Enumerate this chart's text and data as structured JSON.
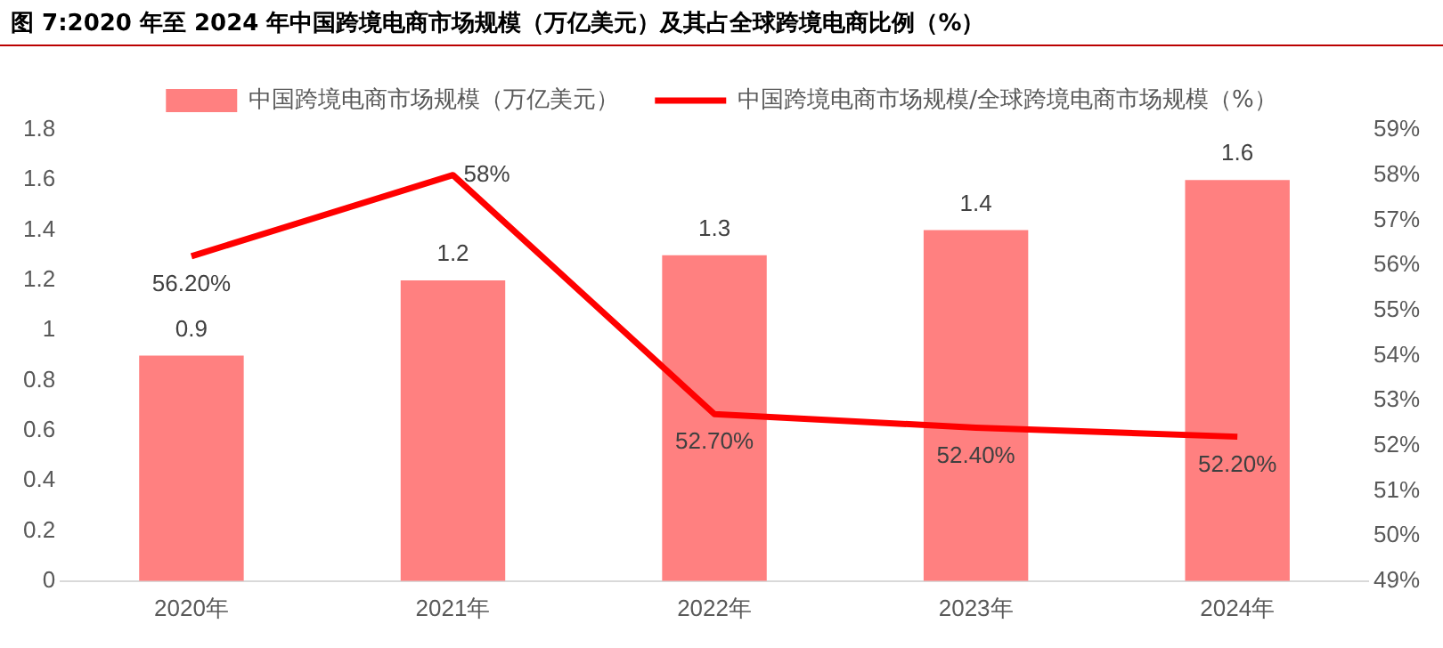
{
  "chart_data": {
    "type": "bar",
    "title": "图 7:2020 年至 2024 年中国跨境电商市场规模（万亿美元）及其占全球跨境电商比例（%）",
    "categories": [
      "2020年",
      "2021年",
      "2022年",
      "2023年",
      "2024年"
    ],
    "series": [
      {
        "name": "中国跨境电商市场规模（万亿美元）",
        "color": "#ff8080",
        "values": [
          0.9,
          1.2,
          1.3,
          1.4,
          1.6
        ],
        "value_labels": [
          "0.9",
          "1.2",
          "1.3",
          "1.4",
          "1.6"
        ]
      },
      {
        "name": "中国跨境电商市场规模/全球跨境电商市场规模（%）",
        "type": "line",
        "axis": "y2",
        "color": "#ff0000",
        "values": [
          56.2,
          58,
          52.7,
          52.4,
          52.2
        ],
        "value_labels": [
          "56.20%",
          "58%",
          "52.70%",
          "52.40%",
          "52.20%"
        ]
      }
    ],
    "ylim": [
      0,
      1.8
    ],
    "yticks": [
      0,
      0.2,
      0.4,
      0.6,
      0.8,
      1,
      1.2,
      1.4,
      1.6,
      1.8
    ],
    "y2lim": [
      49,
      59
    ],
    "y2ticks": [
      {
        "value": 49,
        "label": "49%"
      },
      {
        "value": 50,
        "label": "50%"
      },
      {
        "value": 51,
        "label": "51%"
      },
      {
        "value": 52,
        "label": "52%"
      },
      {
        "value": 53,
        "label": "53%"
      },
      {
        "value": 54,
        "label": "54%"
      },
      {
        "value": 55,
        "label": "55%"
      },
      {
        "value": 56,
        "label": "56%"
      },
      {
        "value": 57,
        "label": "57%"
      },
      {
        "value": 58,
        "label": "58%"
      },
      {
        "value": 59,
        "label": "59%"
      }
    ],
    "grid": false,
    "legend": "top",
    "marker": "none",
    "line_style": "solid"
  }
}
